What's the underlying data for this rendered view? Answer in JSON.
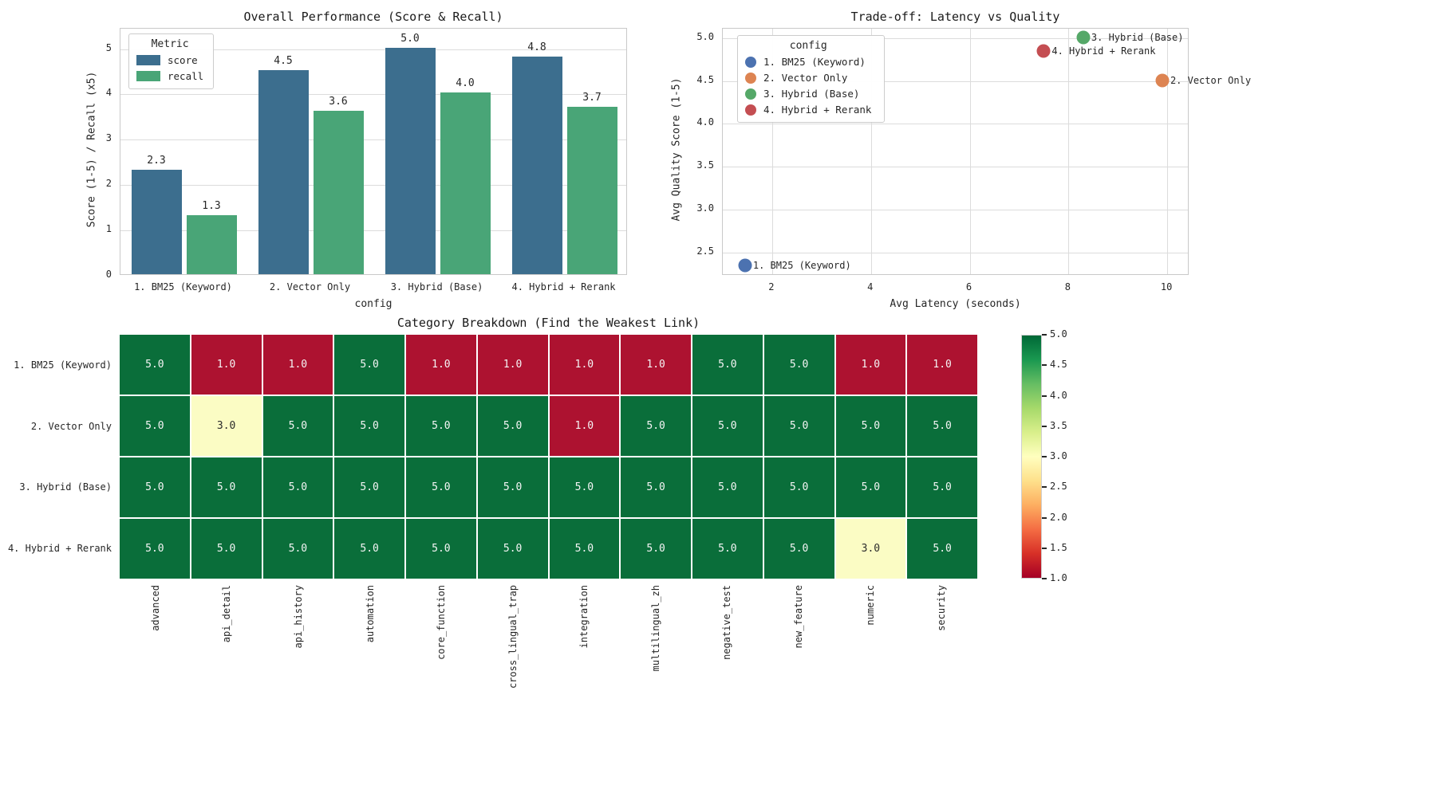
{
  "figure": {
    "background": "#ffffff",
    "text_color": "#262626"
  },
  "chart_data": [
    {
      "type": "bar",
      "title": "Overall Performance (Score & Recall)",
      "xlabel": "config",
      "ylabel": "Score (1-5) / Recall (x5)",
      "legend_title": "Metric",
      "categories": [
        "1. BM25 (Keyword)",
        "2. Vector Only",
        "3. Hybrid (Base)",
        "4. Hybrid + Rerank"
      ],
      "series": [
        {
          "name": "score",
          "color": "#3c6e8e",
          "values": [
            2.3,
            4.5,
            5.0,
            4.8
          ]
        },
        {
          "name": "recall",
          "color": "#49a577",
          "values": [
            1.3,
            3.6,
            4.0,
            3.7
          ]
        }
      ],
      "yticks": [
        0,
        1,
        2,
        3,
        4,
        5
      ],
      "ylim": [
        0,
        5.45
      ],
      "grid": true
    },
    {
      "type": "scatter",
      "title": "Trade-off: Latency vs Quality",
      "xlabel": "Avg Latency (seconds)",
      "ylabel": "Avg Quality Score (1-5)",
      "legend_title": "config",
      "xlim": [
        1.0,
        10.45
      ],
      "ylim": [
        2.23,
        5.11
      ],
      "xticks": [
        2,
        4,
        6,
        8,
        10
      ],
      "yticks": [
        2.5,
        3.0,
        3.5,
        4.0,
        4.5,
        5.0
      ],
      "grid": true,
      "points": [
        {
          "label": "1. BM25 (Keyword)",
          "x": 1.45,
          "y": 2.35,
          "color": "#4c72b0"
        },
        {
          "label": "2. Vector Only",
          "x": 9.9,
          "y": 4.51,
          "color": "#dd8452"
        },
        {
          "label": "3. Hybrid (Base)",
          "x": 8.3,
          "y": 5.01,
          "color": "#55a868"
        },
        {
          "label": "4. Hybrid + Rerank",
          "x": 7.5,
          "y": 4.85,
          "color": "#c44e52"
        }
      ]
    },
    {
      "type": "heatmap",
      "title": "Category Breakdown (Find the Weakest Link)",
      "rows": [
        "1. BM25 (Keyword)",
        "2. Vector Only",
        "3. Hybrid (Base)",
        "4. Hybrid + Rerank"
      ],
      "columns": [
        "advanced",
        "api_detail",
        "api_history",
        "automation",
        "core_function",
        "cross_lingual_trap",
        "integration",
        "multilingual_zh",
        "negative_test",
        "new_feature",
        "numeric",
        "security"
      ],
      "values": [
        [
          5.0,
          1.0,
          1.0,
          5.0,
          1.0,
          1.0,
          1.0,
          1.0,
          5.0,
          5.0,
          1.0,
          1.0
        ],
        [
          5.0,
          3.0,
          5.0,
          5.0,
          5.0,
          5.0,
          1.0,
          5.0,
          5.0,
          5.0,
          5.0,
          5.0
        ],
        [
          5.0,
          5.0,
          5.0,
          5.0,
          5.0,
          5.0,
          5.0,
          5.0,
          5.0,
          5.0,
          5.0,
          5.0
        ],
        [
          5.0,
          5.0,
          5.0,
          5.0,
          5.0,
          5.0,
          5.0,
          5.0,
          5.0,
          5.0,
          3.0,
          5.0
        ]
      ],
      "vmin": 1.0,
      "vmax": 5.0,
      "cell_colors": {
        "5.0": "#0a6e3a",
        "3.0": "#fbfcc4",
        "1.0": "#ad1230"
      },
      "cell_text_light": "#f5f5f5",
      "cell_text_dark": "#2b2b2b",
      "colorbar_ticks": [
        "5.0",
        "4.5",
        "4.0",
        "3.5",
        "3.0",
        "2.5",
        "2.0",
        "1.5",
        "1.0"
      ],
      "colormap": "RdYlGn",
      "colorbar_gradient": [
        "#006837",
        "#1a9850",
        "#66bd63",
        "#a6d96a",
        "#d9ef8b",
        "#ffffbf",
        "#fee08b",
        "#fdae61",
        "#f46d43",
        "#d73027",
        "#a50026"
      ]
    }
  ]
}
